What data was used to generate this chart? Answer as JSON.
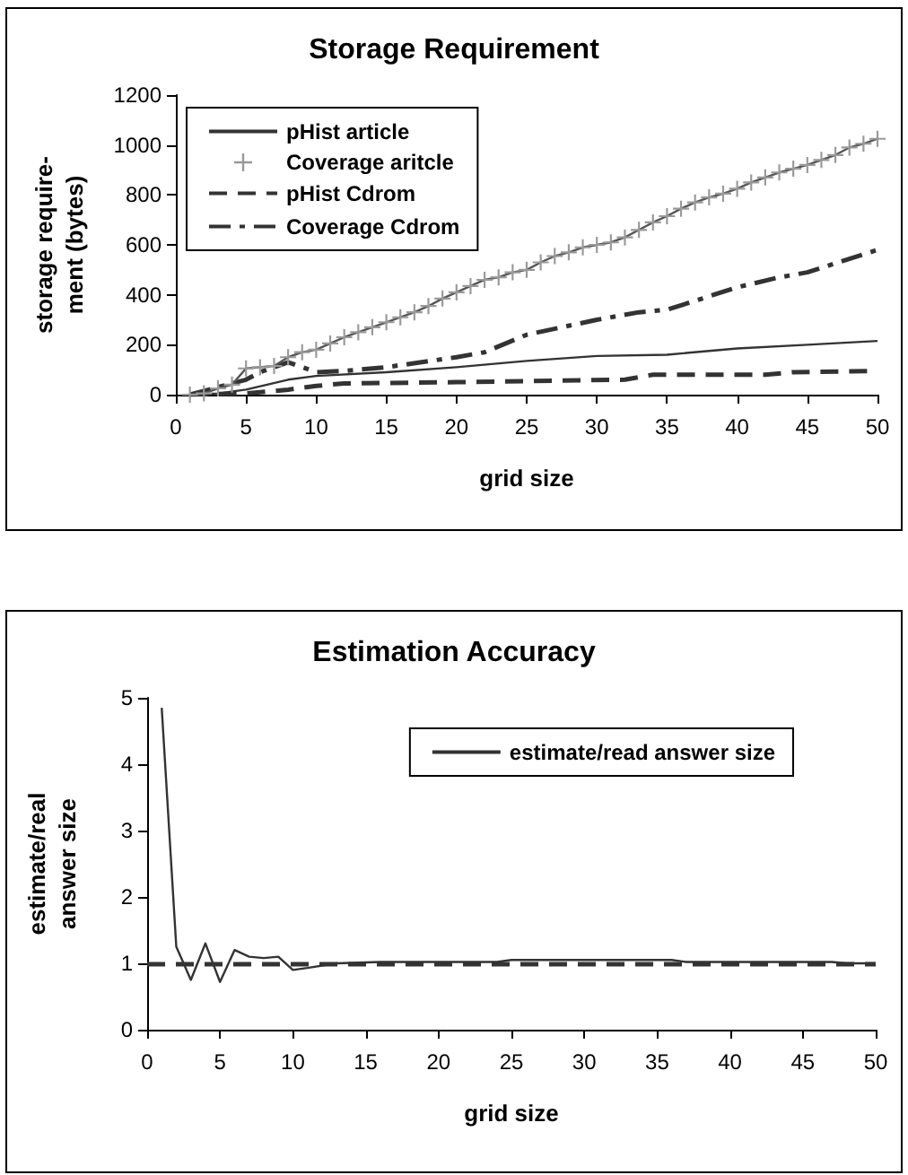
{
  "chart_data": [
    {
      "type": "line",
      "title": "Storage Requirement",
      "xlabel": "grid size",
      "ylabel": "storage require-\nment (bytes)",
      "xlim": [
        0,
        50
      ],
      "xticks": [
        0,
        5,
        10,
        15,
        20,
        25,
        30,
        35,
        40,
        45,
        50
      ],
      "ylim": [
        0,
        1200
      ],
      "yticks": [
        0,
        200,
        400,
        600,
        800,
        1000,
        1200
      ],
      "grid": false,
      "legend": "top left",
      "series": [
        {
          "name": "pHist article",
          "color": "#333333",
          "line_style": "solid",
          "marker": "none",
          "x": [
            1,
            3,
            5,
            8,
            10,
            15,
            20,
            25,
            30,
            35,
            40,
            45,
            50
          ],
          "values": [
            0,
            5,
            20,
            60,
            75,
            90,
            110,
            135,
            155,
            160,
            185,
            200,
            215
          ]
        },
        {
          "name": "Coverage aritcle",
          "color": "#555555",
          "line_style": "solid",
          "marker": "cross",
          "x": [
            1,
            2,
            3,
            4,
            5,
            6,
            7,
            8,
            9,
            10,
            11,
            12,
            13,
            14,
            15,
            16,
            17,
            18,
            19,
            20,
            21,
            22,
            23,
            24,
            25,
            26,
            27,
            28,
            29,
            30,
            31,
            32,
            33,
            34,
            35,
            36,
            37,
            38,
            39,
            40,
            41,
            42,
            43,
            44,
            45,
            46,
            47,
            48,
            49,
            50
          ],
          "values": [
            0,
            5,
            25,
            40,
            105,
            110,
            115,
            150,
            170,
            180,
            205,
            230,
            250,
            270,
            290,
            310,
            330,
            355,
            385,
            410,
            435,
            460,
            470,
            490,
            500,
            530,
            555,
            570,
            590,
            600,
            610,
            630,
            660,
            690,
            715,
            745,
            770,
            790,
            805,
            825,
            850,
            870,
            890,
            905,
            920,
            940,
            960,
            990,
            1005,
            1025
          ]
        },
        {
          "name": "pHist Cdrom",
          "color": "#333333",
          "line_style": "dashed",
          "marker": "none",
          "x": [
            1,
            5,
            8,
            10,
            12,
            20,
            32,
            34,
            42,
            44,
            50
          ],
          "values": [
            0,
            5,
            20,
            35,
            45,
            50,
            60,
            80,
            80,
            90,
            95
          ]
        },
        {
          "name": "Coverage Cdrom",
          "color": "#333333",
          "line_style": "dashdot",
          "marker": "none",
          "x": [
            1,
            3,
            5,
            6,
            8,
            10,
            12,
            15,
            20,
            22,
            25,
            30,
            33,
            35,
            40,
            43,
            45,
            50
          ],
          "values": [
            0,
            30,
            60,
            90,
            130,
            90,
            95,
            110,
            150,
            170,
            240,
            300,
            330,
            340,
            430,
            470,
            490,
            580
          ]
        }
      ]
    },
    {
      "type": "line",
      "title": "Estimation Accuracy",
      "xlabel": "grid size",
      "ylabel": "estimate/real\nanswer size",
      "xlim": [
        0,
        50
      ],
      "xticks": [
        0,
        5,
        10,
        15,
        20,
        25,
        30,
        35,
        40,
        45,
        50
      ],
      "ylim": [
        0,
        5
      ],
      "yticks": [
        0,
        1,
        2,
        3,
        4,
        5
      ],
      "grid": false,
      "legend": "top right",
      "ref_lines": [
        {
          "axis": "y",
          "value": 1,
          "color": "#333333",
          "line_style": "dashed"
        }
      ],
      "series": [
        {
          "name": "estimate/read answer size",
          "color": "#333333",
          "line_style": "solid",
          "marker": "none",
          "x": [
            1,
            2,
            3,
            4,
            5,
            6,
            7,
            8,
            9,
            10,
            11,
            13,
            16,
            24,
            25,
            36,
            37,
            47,
            48,
            50
          ],
          "values": [
            4.85,
            1.25,
            0.75,
            1.3,
            0.72,
            1.2,
            1.1,
            1.08,
            1.1,
            0.9,
            0.93,
            1.0,
            1.02,
            1.02,
            1.05,
            1.05,
            1.02,
            1.02,
            1.0,
            1.0
          ]
        }
      ]
    }
  ]
}
